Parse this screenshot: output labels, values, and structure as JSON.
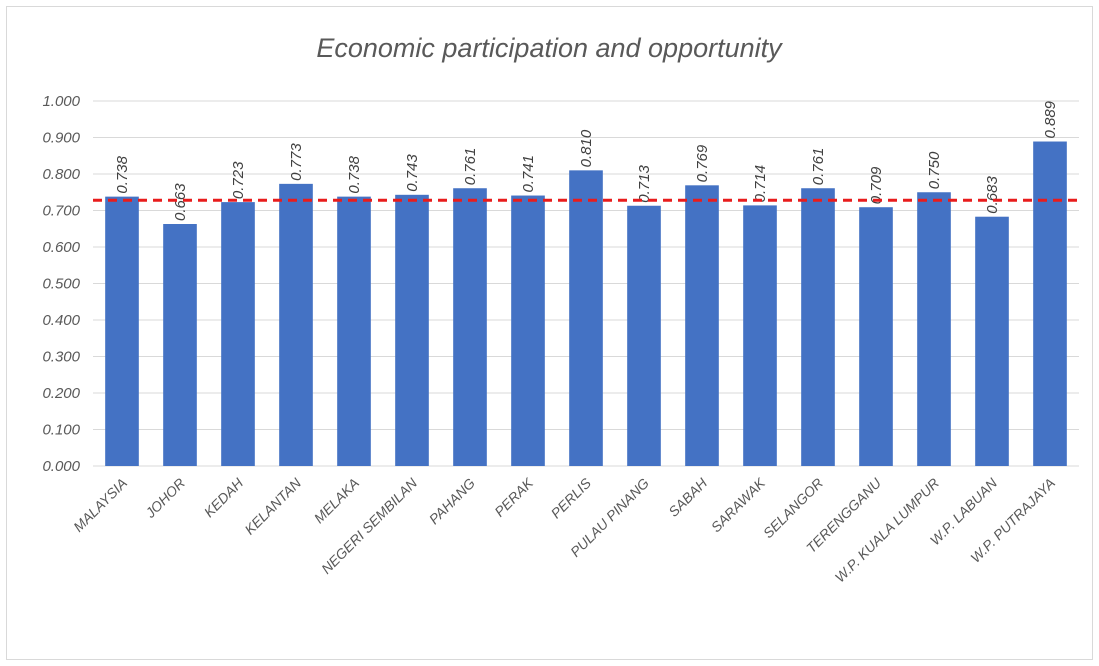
{
  "chart_data": {
    "type": "bar",
    "title": "Economic participation and opportunity",
    "xlabel": "",
    "ylabel": "",
    "ylim": [
      0,
      1.0
    ],
    "yticks": [
      "0.000",
      "0.100",
      "0.200",
      "0.300",
      "0.400",
      "0.500",
      "0.600",
      "0.700",
      "0.800",
      "0.900",
      "1.000"
    ],
    "grid": true,
    "categories": [
      "MALAYSIA",
      "JOHOR",
      "KEDAH",
      "KELANTAN",
      "MELAKA",
      "NEGERI SEMBILAN",
      "PAHANG",
      "PERAK",
      "PERLIS",
      "PULAU PINANG",
      "SABAH",
      "SARAWAK",
      "SELANGOR",
      "TERENGGANU",
      "W.P. KUALA LUMPUR",
      "W.P. LABUAN",
      "W.P. PUTRAJAYA"
    ],
    "values": [
      0.738,
      0.663,
      0.723,
      0.773,
      0.738,
      0.743,
      0.761,
      0.741,
      0.81,
      0.713,
      0.769,
      0.714,
      0.761,
      0.709,
      0.75,
      0.683,
      0.889
    ],
    "data_labels": [
      "0.738",
      "0.663",
      "0.723",
      "0.773",
      "0.738",
      "0.743",
      "0.761",
      "0.741",
      "0.810",
      "0.713",
      "0.769",
      "0.714",
      "0.761",
      "0.709",
      "0.750",
      "0.683",
      "0.889"
    ],
    "reference_line": {
      "value": 0.728,
      "style": "dashed"
    },
    "colors": {
      "bar": "#4472c4",
      "reference_line": "#e81c1c",
      "grid": "#d9d9d9",
      "text": "#595959"
    }
  }
}
